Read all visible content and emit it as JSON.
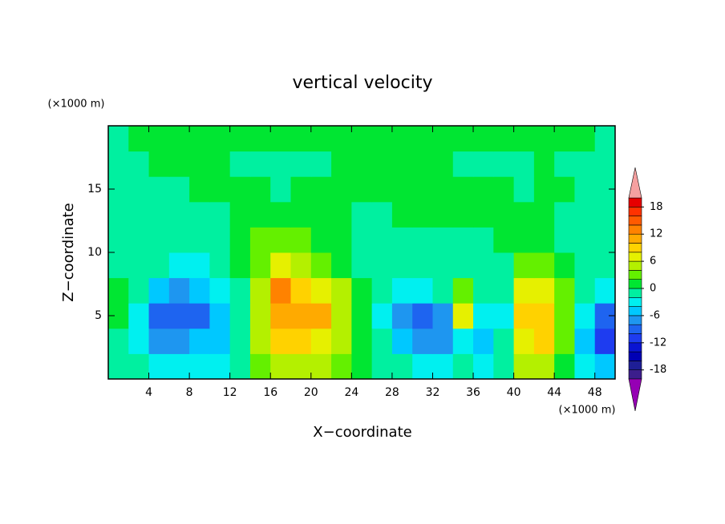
{
  "chart_data": {
    "type": "contour",
    "title": "vertical velocity",
    "xlabel": "X−coordinate",
    "ylabel": "Z−coordinate",
    "xunits": "(×1000 m)",
    "yunits": "(×1000 m)",
    "xlim": [
      0,
      50
    ],
    "ylim": [
      0,
      20
    ],
    "xticks": [
      4,
      8,
      12,
      16,
      20,
      24,
      28,
      32,
      36,
      40,
      44,
      48
    ],
    "yticks": [
      5,
      10,
      15
    ],
    "x": [
      1,
      3,
      5,
      7,
      9,
      11,
      13,
      15,
      17,
      19,
      21,
      23,
      25,
      27,
      29,
      31,
      33,
      35,
      37,
      39,
      41,
      43,
      45,
      47,
      49
    ],
    "y": [
      1,
      3,
      5,
      7,
      9,
      11,
      13,
      15,
      17,
      19
    ],
    "z": [
      [
        -1,
        -1,
        -3,
        -4,
        -4,
        -3,
        -1,
        3,
        5,
        5,
        5,
        3,
        1,
        -1,
        -2,
        -3,
        -3,
        -2,
        -3,
        -1,
        5,
        5,
        1,
        -3,
        -5
      ],
      [
        -1,
        -3,
        -7,
        -8,
        -6,
        -5,
        -1,
        5,
        8,
        9,
        7,
        4,
        1,
        -2,
        -5,
        -7,
        -8,
        -4,
        -5,
        -2,
        7,
        8,
        3,
        -6,
        -12
      ],
      [
        1,
        -4,
        -9,
        -10,
        -9,
        -6,
        -1,
        4,
        11,
        11,
        10,
        5,
        1,
        -3,
        -8,
        -10,
        -7,
        6,
        -3,
        -3,
        8,
        9,
        3,
        -4,
        -9
      ],
      [
        1,
        -2,
        -5,
        -7,
        -6,
        -4,
        -1,
        5,
        13,
        9,
        6,
        4,
        0,
        -2,
        -3,
        -4,
        -2,
        3,
        -2,
        -2,
        6,
        6,
        2,
        -2,
        -3
      ],
      [
        -1,
        -1,
        -2,
        -3,
        -3,
        -2,
        0,
        3,
        6,
        4,
        2,
        1,
        -1,
        -1,
        -2,
        -2,
        -1,
        -1,
        -1,
        -1,
        2,
        2,
        0,
        -1,
        -1
      ],
      [
        -1,
        -1,
        -1,
        -1,
        -1,
        -1,
        1,
        3,
        3,
        2,
        1,
        1,
        -1,
        -1,
        -1,
        -1,
        -1,
        -1,
        -1,
        1,
        1,
        1,
        -1,
        -1,
        -1
      ],
      [
        -1,
        -1,
        -1,
        -1,
        -1,
        -1,
        1,
        1,
        1,
        1,
        1,
        1,
        -1,
        -1,
        1,
        1,
        1,
        1,
        1,
        1,
        1,
        1,
        -1,
        -1,
        -1
      ],
      [
        -1,
        -1,
        -1,
        -1,
        1,
        1,
        1,
        1,
        -1,
        1,
        1,
        1,
        1,
        1,
        1,
        1,
        1,
        1,
        1,
        1,
        -1,
        1,
        1,
        -1,
        -1
      ],
      [
        -1,
        -1,
        1,
        1,
        1,
        1,
        -1,
        -1,
        -1,
        -1,
        -1,
        1,
        1,
        1,
        1,
        1,
        1,
        -1,
        -1,
        -1,
        -1,
        1,
        -1,
        -1,
        -1
      ],
      [
        -1,
        1,
        1,
        1,
        1,
        1,
        1,
        1,
        1,
        1,
        1,
        1,
        1,
        1,
        1,
        1,
        1,
        1,
        1,
        1,
        1,
        1,
        1,
        1,
        -1
      ]
    ],
    "clim": [
      -20,
      20
    ],
    "cticks": [
      -18,
      -12,
      -6,
      0,
      6,
      12,
      18
    ],
    "colors": [
      "#3c1e8c",
      "#1e1e96",
      "#0000b4",
      "#0a14d2",
      "#1e3cf0",
      "#1e64f0",
      "#1e96f0",
      "#00c8ff",
      "#00f0f0",
      "#00f0a0",
      "#00e632",
      "#64f000",
      "#b4f000",
      "#e6f000",
      "#ffd200",
      "#ffaa00",
      "#ff8200",
      "#ff5a00",
      "#ff3200",
      "#e60000"
    ],
    "under_color": "#9600b4",
    "over_color": "#f5a0a0"
  }
}
